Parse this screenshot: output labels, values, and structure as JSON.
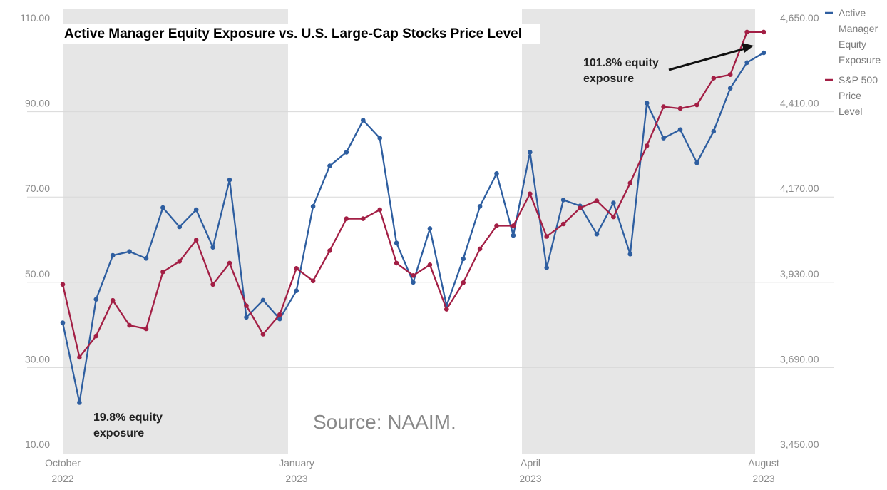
{
  "chart_data": {
    "type": "line",
    "title": "Active Manager Equity Exposure vs. U.S. Large-Cap Stocks Price Level",
    "source": "Source: NAAIM.",
    "left_axis": {
      "ticks": [
        "110.00",
        "90.00",
        "70.00",
        "50.00",
        "30.00",
        "10.00"
      ],
      "range": [
        10,
        110
      ]
    },
    "right_axis": {
      "ticks": [
        "4,650.00",
        "4,410.00",
        "4,170.00",
        "3,930.00",
        "3,690.00",
        "3,450.00"
      ],
      "range": [
        3450,
        4650
      ]
    },
    "x_ticks": [
      {
        "line1": "October",
        "line2": "2022"
      },
      {
        "line1": "January",
        "line2": "2023"
      },
      {
        "line1": "April",
        "line2": "2023"
      },
      {
        "line1": "August",
        "line2": "2023"
      }
    ],
    "shaded_bands": [
      "Oct 2022 – Dec 2022",
      "Apr 2023 – Jul 2023"
    ],
    "series": [
      {
        "name": "Active Manager Equity Exposure",
        "color": "#2e5ea0",
        "values": [
          38.5,
          19.8,
          44.0,
          54.3,
          55.2,
          53.6,
          65.5,
          61.0,
          65.0,
          56.2,
          72.0,
          39.8,
          43.8,
          39.4,
          46.0,
          65.8,
          75.3,
          78.5,
          86.0,
          81.8,
          57.2,
          48.0,
          60.6,
          42.5,
          53.5,
          65.8,
          73.5,
          59.0,
          78.5,
          51.4,
          67.3,
          65.9,
          59.3,
          66.6,
          54.6,
          90.0,
          81.8,
          83.8,
          76.0,
          83.4,
          93.5,
          99.5,
          101.8
        ]
      },
      {
        "name": "S&P 500 Price Level",
        "color": "#a31f45",
        "values": [
          3900,
          3695,
          3755,
          3855,
          3785,
          3775,
          3935,
          3965,
          4025,
          3900,
          3960,
          3840,
          3760,
          3815,
          3945,
          3910,
          3995,
          4085,
          4085,
          4110,
          3960,
          3925,
          3955,
          3830,
          3905,
          4000,
          4065,
          4065,
          4155,
          4035,
          4070,
          4115,
          4135,
          4090,
          4185,
          4290,
          4400,
          4395,
          4405,
          4480,
          4490,
          4610,
          4610
        ]
      }
    ],
    "legend": [
      {
        "label": "Active Manager Equity Exposure",
        "lines": [
          "Active",
          "Manager",
          "Equity",
          "Exposure"
        ]
      },
      {
        "label": "S&P 500 Price Level",
        "lines": [
          "S&P 500",
          "Price",
          "Level"
        ]
      }
    ],
    "annotations": [
      {
        "lines": [
          "19.8% equity",
          "exposure"
        ]
      },
      {
        "lines": [
          "101.8% equity",
          "exposure"
        ]
      }
    ]
  }
}
